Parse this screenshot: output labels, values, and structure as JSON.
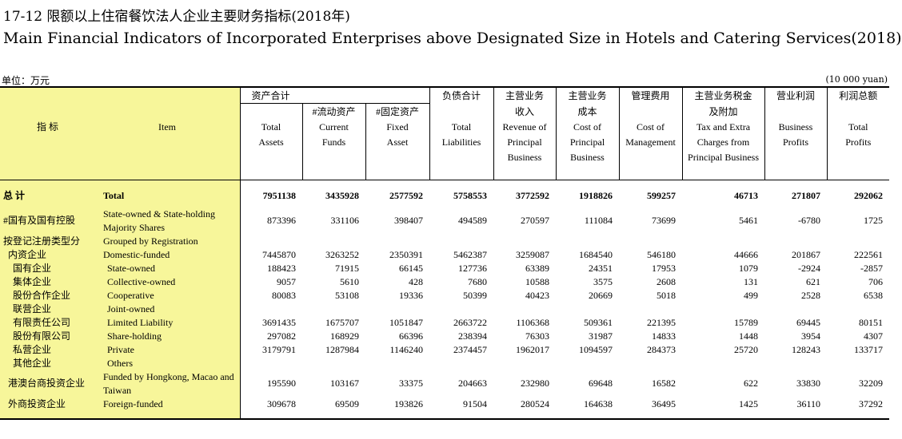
{
  "title_cn": "17-12  限额以上住宿餐饮法人企业主要财务指标(2018年)",
  "title_en": "Main Financial Indicators of Incorporated Enterprises above Designated Size in Hotels and Catering Services(2018)",
  "unit_cn": "单位：万元",
  "unit_en": "(10 000 yuan)",
  "header": {
    "indicator_cn": "指    标",
    "item_en": "Item",
    "columns": [
      {
        "cn1": "资产合计",
        "cn2": "",
        "en1": "Total",
        "en2": "Assets",
        "en3": ""
      },
      {
        "cn1": "",
        "cn2": "#流动资产",
        "en1": "Current",
        "en2": "Funds",
        "en3": ""
      },
      {
        "cn1": "",
        "cn2": "#固定资产",
        "en1": "Fixed",
        "en2": "Asset",
        "en3": ""
      },
      {
        "cn1": "负债合计",
        "cn2": "",
        "en1": "Total",
        "en2": "Liabilities",
        "en3": ""
      },
      {
        "cn1": "主营业务",
        "cn2": "收入",
        "en1": "Revenue of",
        "en2": "Principal",
        "en3": "Business"
      },
      {
        "cn1": "主营业务",
        "cn2": "成本",
        "en1": "Cost of",
        "en2": "Principal",
        "en3": "Business"
      },
      {
        "cn1": "管理费用",
        "cn2": "",
        "en1": "Cost of",
        "en2": "Management",
        "en3": ""
      },
      {
        "cn1": "主营业务税金",
        "cn2": "及附加",
        "en1": "Tax and Extra",
        "en2": "Charges from",
        "en3": "Principal Business"
      },
      {
        "cn1": "营业利润",
        "cn2": "",
        "en1": "Business",
        "en2": "Profits",
        "en3": ""
      },
      {
        "cn1": "利润总额",
        "cn2": "",
        "en1": "Total",
        "en2": "Profits",
        "en3": ""
      }
    ]
  },
  "rows": [
    {
      "cn": "总  计",
      "en": "Total",
      "values": [
        "7951138",
        "3435928",
        "2577592",
        "5758553",
        "3772592",
        "1918826",
        "599257",
        "46713",
        "271807",
        "292062"
      ]
    },
    {
      "cn": "#国有及国有控股",
      "en": "State-owned & State-holding Majority Shares",
      "values": [
        "873396",
        "331106",
        "398407",
        "494589",
        "270597",
        "111084",
        "73699",
        "5461",
        "-6780",
        "1725"
      ]
    },
    {
      "cn": "按登记注册类型分",
      "en": "Grouped by Registration",
      "values": [
        "",
        "",
        "",
        "",
        "",
        "",
        "",
        "",
        "",
        ""
      ]
    },
    {
      "cn": "内资企业",
      "en": "Domestic-funded",
      "values": [
        "7445870",
        "3263252",
        "2350391",
        "5462387",
        "3259087",
        "1684540",
        "546180",
        "44666",
        "201867",
        "222561"
      ]
    },
    {
      "cn": "国有企业",
      "en": "State-owned",
      "values": [
        "188423",
        "71915",
        "66145",
        "127736",
        "63389",
        "24351",
        "17953",
        "1079",
        "-2924",
        "-2857"
      ]
    },
    {
      "cn": "集体企业",
      "en": "Collective-owned",
      "values": [
        "9057",
        "5610",
        "428",
        "7680",
        "10588",
        "3575",
        "2608",
        "131",
        "621",
        "706"
      ]
    },
    {
      "cn": "股份合作企业",
      "en": "Cooperative",
      "values": [
        "80083",
        "53108",
        "19336",
        "50399",
        "40423",
        "20669",
        "5018",
        "499",
        "2528",
        "6538"
      ]
    },
    {
      "cn": "联营企业",
      "en": "Joint-owned",
      "values": [
        "",
        "",
        "",
        "",
        "",
        "",
        "",
        "",
        "",
        ""
      ]
    },
    {
      "cn": "有限责任公司",
      "en": "Limited Liability",
      "values": [
        "3691435",
        "1675707",
        "1051847",
        "2663722",
        "1106368",
        "509361",
        "221395",
        "15789",
        "69445",
        "80151"
      ]
    },
    {
      "cn": "股份有限公司",
      "en": "Share-holding",
      "values": [
        "297082",
        "168929",
        "66396",
        "238394",
        "76303",
        "31987",
        "14833",
        "1448",
        "3954",
        "4307"
      ]
    },
    {
      "cn": "私营企业",
      "en": "Private",
      "values": [
        "3179791",
        "1287984",
        "1146240",
        "2374457",
        "1962017",
        "1094597",
        "284373",
        "25720",
        "128243",
        "133717"
      ]
    },
    {
      "cn": "其他企业",
      "en": "Others",
      "values": [
        "",
        "",
        "",
        "",
        "",
        "",
        "",
        "",
        "",
        ""
      ]
    },
    {
      "cn": "港澳台商投资企业",
      "en": "Funded by Hongkong, Macao and Taiwan",
      "values": [
        "195590",
        "103167",
        "33375",
        "204663",
        "232980",
        "69648",
        "16582",
        "622",
        "33830",
        "32209"
      ]
    },
    {
      "cn": "外商投资企业",
      "en": "Foreign-funded",
      "values": [
        "309678",
        "69509",
        "193826",
        "91504",
        "280524",
        "164638",
        "36495",
        "1425",
        "36110",
        "37292"
      ]
    }
  ]
}
